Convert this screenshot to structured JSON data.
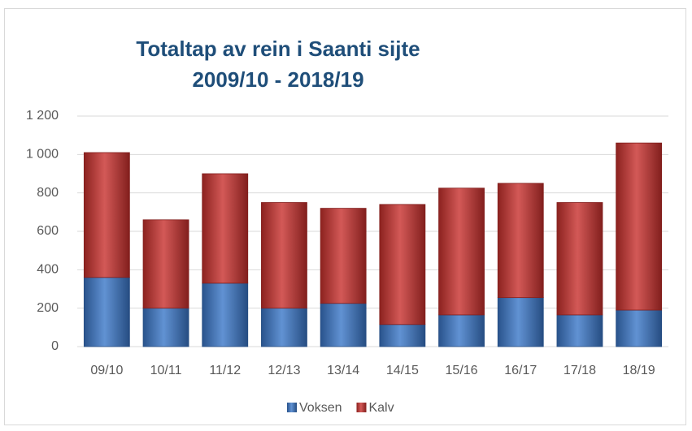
{
  "chart_data": {
    "type": "stacked_bar",
    "title": [
      "Totaltap av rein i Saanti sijte",
      "2009/10 - 2018/19"
    ],
    "categories": [
      "09/10",
      "10/11",
      "11/12",
      "12/13",
      "13/14",
      "14/15",
      "15/16",
      "16/17",
      "17/18",
      "18/19"
    ],
    "series": [
      {
        "name": "Voksen",
        "color": "#3a77c8",
        "values": [
          360,
          200,
          330,
          200,
          225,
          115,
          165,
          255,
          165,
          190
        ]
      },
      {
        "name": "Kalv",
        "color": "#c8302d",
        "values": [
          650,
          460,
          570,
          550,
          495,
          625,
          660,
          595,
          585,
          870
        ]
      }
    ],
    "ylim": [
      0,
      1200
    ],
    "yticks": [
      0,
      200,
      400,
      600,
      800,
      {
        "value": 1000,
        "label": "1 000"
      },
      {
        "value": 1200,
        "label": "1 200"
      }
    ],
    "grid": true,
    "legend": "bottom"
  }
}
